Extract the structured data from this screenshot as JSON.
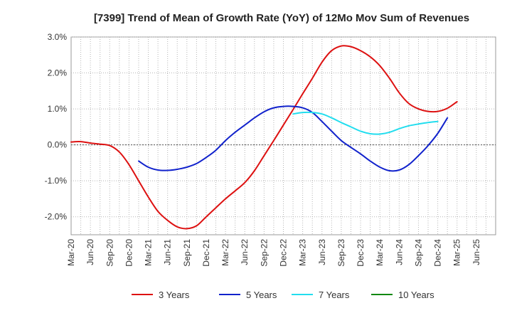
{
  "chart_data": {
    "type": "line",
    "title": "[7399]  Trend of Mean of Growth Rate (YoY) of 12Mo Mov Sum of Revenues",
    "xlabel": "",
    "ylabel": "",
    "ylim": [
      -2.5,
      3.0
    ],
    "y_ticks": [
      3.0,
      2.0,
      1.0,
      0.0,
      -1.0,
      -2.0
    ],
    "y_tick_labels": [
      "3.0%",
      "2.0%",
      "1.0%",
      "0.0%",
      "-1.0%",
      "-2.0%"
    ],
    "x_tick_labels": [
      "Mar-20",
      "Jun-20",
      "Sep-20",
      "Dec-20",
      "Mar-21",
      "Jun-21",
      "Sep-21",
      "Dec-21",
      "Mar-22",
      "Jun-22",
      "Sep-22",
      "Dec-22",
      "Mar-23",
      "Jun-23",
      "Sep-23",
      "Dec-23",
      "Mar-24",
      "Jun-24",
      "Sep-24",
      "Dec-24",
      "Mar-25",
      "Jun-25"
    ],
    "grid": true,
    "legend_position": "bottom",
    "series": [
      {
        "name": "3 Years",
        "color": "#dd1111",
        "points": [
          [
            0,
            0.08
          ],
          [
            0.5,
            0.09
          ],
          [
            1,
            0.05
          ],
          [
            1.5,
            0.02
          ],
          [
            2,
            -0.02
          ],
          [
            2.5,
            -0.2
          ],
          [
            3,
            -0.55
          ],
          [
            3.5,
            -1.0
          ],
          [
            4,
            -1.45
          ],
          [
            4.5,
            -1.85
          ],
          [
            5,
            -2.1
          ],
          [
            5.5,
            -2.28
          ],
          [
            6,
            -2.33
          ],
          [
            6.5,
            -2.25
          ],
          [
            7,
            -2.0
          ],
          [
            7.5,
            -1.75
          ],
          [
            8,
            -1.5
          ],
          [
            8.5,
            -1.28
          ],
          [
            9,
            -1.05
          ],
          [
            9.5,
            -0.72
          ],
          [
            10,
            -0.3
          ],
          [
            10.5,
            0.12
          ],
          [
            11,
            0.55
          ],
          [
            11.5,
            0.98
          ],
          [
            12,
            1.42
          ],
          [
            12.5,
            1.85
          ],
          [
            13,
            2.3
          ],
          [
            13.5,
            2.62
          ],
          [
            14,
            2.75
          ],
          [
            14.5,
            2.73
          ],
          [
            15,
            2.62
          ],
          [
            15.5,
            2.45
          ],
          [
            16,
            2.2
          ],
          [
            16.5,
            1.85
          ],
          [
            17,
            1.45
          ],
          [
            17.5,
            1.15
          ],
          [
            18,
            1.0
          ],
          [
            18.5,
            0.93
          ],
          [
            19,
            0.93
          ],
          [
            19.5,
            1.02
          ],
          [
            20,
            1.2
          ]
        ]
      },
      {
        "name": "5 Years",
        "color": "#1122cc",
        "points": [
          [
            3.5,
            -0.45
          ],
          [
            4,
            -0.62
          ],
          [
            4.5,
            -0.7
          ],
          [
            5,
            -0.71
          ],
          [
            5.5,
            -0.68
          ],
          [
            6,
            -0.62
          ],
          [
            6.5,
            -0.52
          ],
          [
            7,
            -0.35
          ],
          [
            7.5,
            -0.15
          ],
          [
            8,
            0.12
          ],
          [
            8.5,
            0.35
          ],
          [
            9,
            0.55
          ],
          [
            9.5,
            0.75
          ],
          [
            10,
            0.92
          ],
          [
            10.5,
            1.03
          ],
          [
            11,
            1.07
          ],
          [
            11.5,
            1.07
          ],
          [
            12,
            1.03
          ],
          [
            12.5,
            0.9
          ],
          [
            13,
            0.65
          ],
          [
            13.5,
            0.38
          ],
          [
            14,
            0.12
          ],
          [
            14.5,
            -0.07
          ],
          [
            15,
            -0.25
          ],
          [
            15.5,
            -0.45
          ],
          [
            16,
            -0.62
          ],
          [
            16.5,
            -0.72
          ],
          [
            17,
            -0.7
          ],
          [
            17.5,
            -0.55
          ],
          [
            18,
            -0.3
          ],
          [
            18.5,
            -0.02
          ],
          [
            19,
            0.32
          ],
          [
            19.5,
            0.75
          ]
        ]
      },
      {
        "name": "7 Years",
        "color": "#22ddee",
        "points": [
          [
            11.5,
            0.86
          ],
          [
            12,
            0.9
          ],
          [
            12.5,
            0.9
          ],
          [
            13,
            0.86
          ],
          [
            13.5,
            0.75
          ],
          [
            14,
            0.62
          ],
          [
            14.5,
            0.5
          ],
          [
            15,
            0.38
          ],
          [
            15.5,
            0.31
          ],
          [
            16,
            0.3
          ],
          [
            16.5,
            0.35
          ],
          [
            17,
            0.45
          ],
          [
            17.5,
            0.53
          ],
          [
            18,
            0.58
          ],
          [
            18.5,
            0.62
          ],
          [
            19,
            0.65
          ]
        ]
      },
      {
        "name": "10 Years",
        "color": "#118811",
        "points": []
      }
    ]
  }
}
